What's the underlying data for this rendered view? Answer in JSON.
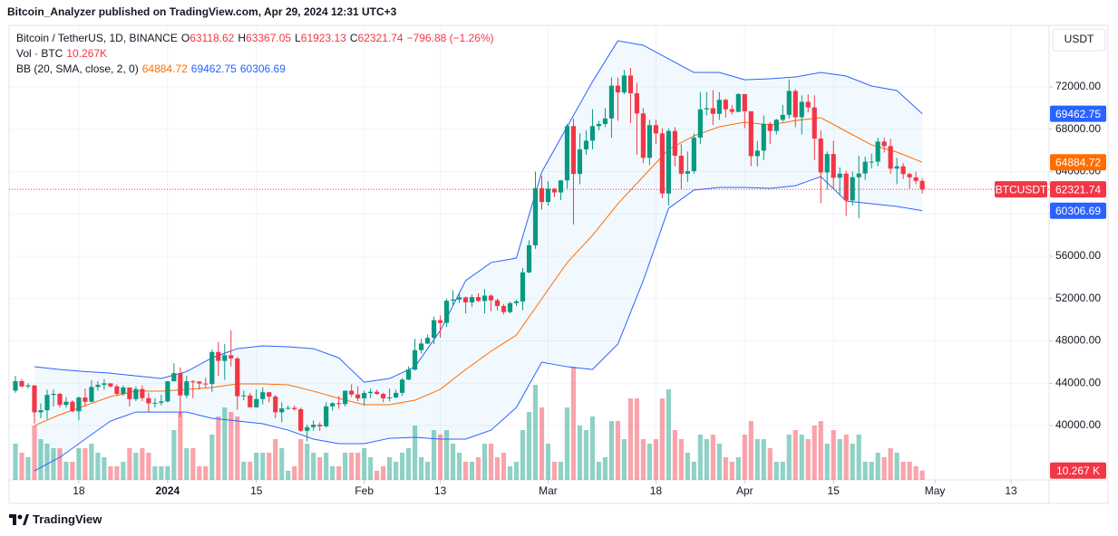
{
  "header": {
    "published": "Bitcoin_Analyzer published on TradingView.com, Apr 29, 2024 12:31 UTC+3"
  },
  "footer": {
    "brand": "TradingView"
  },
  "chart_data": {
    "type": "candlestick",
    "title": "Bitcoin / TetherUS, 1D, BINANCE",
    "ohlc_labels": [
      "O",
      "H",
      "L",
      "C"
    ],
    "change_label": "−796.88 (−1.26%)",
    "currency": "USDT",
    "symbol_tag": "BTCUSDT",
    "up_color": "#089981",
    "down_color": "#f23645",
    "grid": true,
    "last_price_line": true,
    "xlim": [
      "2023-12-07",
      "2024-05-19"
    ],
    "xticks": [
      {
        "value": "2023-12-18",
        "label": "18"
      },
      {
        "value": "2024-01-01",
        "label": "2024"
      },
      {
        "value": "2024-01-15",
        "label": "15"
      },
      {
        "value": "2024-02-01",
        "label": "Feb"
      },
      {
        "value": "2024-02-13",
        "label": "13"
      },
      {
        "value": "2024-03-01",
        "label": "Mar"
      },
      {
        "value": "2024-03-18",
        "label": "18"
      },
      {
        "value": "2024-04-01",
        "label": "Apr"
      },
      {
        "value": "2024-04-15",
        "label": "15"
      },
      {
        "value": "2024-05-01",
        "label": "May"
      },
      {
        "value": "2024-05-13",
        "label": "13"
      }
    ],
    "ylim": [
      34870,
      77820
    ],
    "yticks": [
      {
        "value": 40000,
        "label": "40000.00"
      },
      {
        "value": 44000,
        "label": "44000.00"
      },
      {
        "value": 48000,
        "label": "48000.00"
      },
      {
        "value": 52000,
        "label": "52000.00"
      },
      {
        "value": 56000,
        "label": "56000.00"
      },
      {
        "value": 60000,
        "label": "60000.00"
      },
      {
        "value": 64000,
        "label": "64000.00"
      },
      {
        "value": 68000,
        "label": "68000.00"
      },
      {
        "value": 72000,
        "label": "72000.00"
      }
    ],
    "x": [
      "2023-12-08",
      "2023-12-09",
      "2023-12-10",
      "2023-12-11",
      "2023-12-12",
      "2023-12-13",
      "2023-12-14",
      "2023-12-15",
      "2023-12-16",
      "2023-12-17",
      "2023-12-18",
      "2023-12-19",
      "2023-12-20",
      "2023-12-21",
      "2023-12-22",
      "2023-12-23",
      "2023-12-24",
      "2023-12-25",
      "2023-12-26",
      "2023-12-27",
      "2023-12-28",
      "2023-12-29",
      "2023-12-30",
      "2023-12-31",
      "2024-01-01",
      "2024-01-02",
      "2024-01-03",
      "2024-01-04",
      "2024-01-05",
      "2024-01-06",
      "2024-01-07",
      "2024-01-08",
      "2024-01-09",
      "2024-01-10",
      "2024-01-11",
      "2024-01-12",
      "2024-01-13",
      "2024-01-14",
      "2024-01-15",
      "2024-01-16",
      "2024-01-17",
      "2024-01-18",
      "2024-01-19",
      "2024-01-20",
      "2024-01-21",
      "2024-01-22",
      "2024-01-23",
      "2024-01-24",
      "2024-01-25",
      "2024-01-26",
      "2024-01-27",
      "2024-01-28",
      "2024-01-29",
      "2024-01-30",
      "2024-01-31",
      "2024-02-01",
      "2024-02-02",
      "2024-02-03",
      "2024-02-04",
      "2024-02-05",
      "2024-02-06",
      "2024-02-07",
      "2024-02-08",
      "2024-02-09",
      "2024-02-10",
      "2024-02-11",
      "2024-02-12",
      "2024-02-13",
      "2024-02-14",
      "2024-02-15",
      "2024-02-16",
      "2024-02-17",
      "2024-02-18",
      "2024-02-19",
      "2024-02-20",
      "2024-02-21",
      "2024-02-22",
      "2024-02-23",
      "2024-02-24",
      "2024-02-25",
      "2024-02-26",
      "2024-02-27",
      "2024-02-28",
      "2024-02-29",
      "2024-03-01",
      "2024-03-02",
      "2024-03-03",
      "2024-03-04",
      "2024-03-05",
      "2024-03-06",
      "2024-03-07",
      "2024-03-08",
      "2024-03-09",
      "2024-03-10",
      "2024-03-11",
      "2024-03-12",
      "2024-03-13",
      "2024-03-14",
      "2024-03-15",
      "2024-03-16",
      "2024-03-17",
      "2024-03-18",
      "2024-03-19",
      "2024-03-20",
      "2024-03-21",
      "2024-03-22",
      "2024-03-23",
      "2024-03-24",
      "2024-03-25",
      "2024-03-26",
      "2024-03-27",
      "2024-03-28",
      "2024-03-29",
      "2024-03-30",
      "2024-03-31",
      "2024-04-01",
      "2024-04-02",
      "2024-04-03",
      "2024-04-04",
      "2024-04-05",
      "2024-04-06",
      "2024-04-07",
      "2024-04-08",
      "2024-04-09",
      "2024-04-10",
      "2024-04-11",
      "2024-04-12",
      "2024-04-13",
      "2024-04-14",
      "2024-04-15",
      "2024-04-16",
      "2024-04-17",
      "2024-04-18",
      "2024-04-19",
      "2024-04-20",
      "2024-04-21",
      "2024-04-22",
      "2024-04-23",
      "2024-04-24",
      "2024-04-25",
      "2024-04-26",
      "2024-04-27",
      "2024-04-28",
      "2024-04-29"
    ],
    "open": [
      43300,
      44200,
      43700,
      43800,
      41250,
      41450,
      42900,
      43000,
      41950,
      42250,
      41350,
      42650,
      42250,
      43650,
      43850,
      43990,
      43700,
      43000,
      43600,
      42500,
      43450,
      42600,
      42100,
      42150,
      42280,
      44180,
      44950,
      42850,
      44180,
      44160,
      43970,
      43930,
      46950,
      46110,
      46650,
      46340,
      42780,
      42850,
      41730,
      42510,
      43150,
      42740,
      41260,
      41620,
      41670,
      41550,
      39510,
      39850,
      40080,
      39930,
      41820,
      42120,
      42030,
      43300,
      42940,
      42580,
      43080,
      43190,
      42990,
      42580,
      42660,
      43090,
      44340,
      45290,
      47130,
      47750,
      48290,
      49960,
      49700,
      51800,
      51910,
      52120,
      51640,
      52140,
      51780,
      52280,
      51840,
      51300,
      50730,
      51570,
      51730,
      54480,
      57040,
      62430,
      61130,
      62390,
      62030,
      63170,
      68300,
      63780,
      66100,
      66920,
      68300,
      68500,
      69020,
      72120,
      71480,
      73080,
      71400,
      69500,
      65300,
      68390,
      67610,
      61930,
      67840,
      65500,
      63800,
      64040,
      67210,
      69880,
      69990,
      69460,
      70780,
      69890,
      69650,
      71330,
      69700,
      65460,
      65980,
      68510,
      67840,
      68900,
      69360,
      71620,
      69140,
      70590,
      70060,
      67120,
      63920,
      65660,
      63420,
      63810,
      61280,
      63470,
      63820,
      64940,
      64940,
      66840,
      66410,
      64280,
      64500,
      63770,
      63460,
      63118.62
    ],
    "high": [
      44700,
      44400,
      44000,
      43800,
      42100,
      43400,
      43400,
      43100,
      42700,
      42400,
      42750,
      43500,
      44300,
      44200,
      44400,
      44000,
      43900,
      43800,
      43600,
      43700,
      43800,
      43100,
      42600,
      42900,
      44200,
      45900,
      45500,
      44700,
      44300,
      44200,
      44500,
      47200,
      47900,
      47700,
      49000,
      46500,
      43300,
      43100,
      43400,
      43600,
      43200,
      42900,
      42200,
      41900,
      41900,
      41700,
      40100,
      40500,
      40300,
      42200,
      42200,
      42800,
      43300,
      43900,
      43700,
      43300,
      43500,
      43400,
      43100,
      43500,
      43400,
      44500,
      45600,
      48200,
      48200,
      48600,
      50300,
      50400,
      52000,
      52800,
      52600,
      52200,
      52400,
      52500,
      52900,
      52400,
      52000,
      51500,
      51700,
      51900,
      54900,
      57500,
      64000,
      63600,
      63100,
      62400,
      63200,
      68500,
      69000,
      67600,
      67900,
      69900,
      68800,
      70000,
      72900,
      72900,
      73600,
      73800,
      72400,
      70000,
      68900,
      68900,
      68100,
      68100,
      68200,
      66600,
      65900,
      67600,
      71500,
      71500,
      71700,
      71500,
      70900,
      70300,
      71400,
      71300,
      69700,
      66900,
      69300,
      68700,
      69000,
      70300,
      72700,
      71800,
      71200,
      71300,
      71200,
      67900,
      65900,
      66900,
      64400,
      64100,
      64000,
      65500,
      65400,
      65700,
      67200,
      67200,
      67100,
      65300,
      64800,
      63900,
      64000,
      63367.05
    ],
    "low": [
      43100,
      43600,
      43500,
      40200,
      40700,
      40600,
      41800,
      41700,
      41700,
      41250,
      40500,
      41800,
      42200,
      43300,
      43400,
      43600,
      42800,
      42800,
      41800,
      42300,
      42300,
      41300,
      41700,
      41900,
      42200,
      44200,
      40800,
      42600,
      42600,
      43400,
      43600,
      43200,
      44700,
      44300,
      45600,
      41500,
      42400,
      41700,
      41700,
      42000,
      42200,
      40700,
      40300,
      41500,
      41400,
      39400,
      38500,
      39500,
      39500,
      39800,
      41400,
      41600,
      41800,
      42700,
      42300,
      41900,
      42600,
      42900,
      42200,
      42300,
      42600,
      42800,
      44300,
      45200,
      46800,
      47700,
      47700,
      48300,
      49300,
      51300,
      51600,
      50600,
      51200,
      51700,
      50600,
      50800,
      50900,
      50500,
      50600,
      51300,
      50900,
      54400,
      56700,
      60400,
      60800,
      61600,
      61300,
      62400,
      59000,
      62800,
      65600,
      66100,
      67900,
      68200,
      67200,
      68800,
      71300,
      68600,
      65600,
      64800,
      64600,
      66600,
      61500,
      60800,
      64500,
      62300,
      63000,
      63800,
      66600,
      69300,
      68400,
      68900,
      69100,
      69400,
      69600,
      68100,
      64500,
      64500,
      65100,
      66600,
      67500,
      68700,
      69000,
      68200,
      67500,
      69600,
      65100,
      61000,
      62300,
      62300,
      61800,
      59800,
      60800,
      59600,
      63200,
      64300,
      64500,
      65800,
      63800,
      62800,
      63300,
      62400,
      62800,
      61923.13
    ],
    "close": [
      44200,
      43700,
      43800,
      41250,
      41450,
      42900,
      43000,
      41950,
      42250,
      41350,
      42650,
      42250,
      43650,
      43850,
      43990,
      43700,
      43000,
      43600,
      42500,
      43450,
      42600,
      42100,
      42150,
      42280,
      44180,
      44950,
      42850,
      44180,
      44160,
      43970,
      43930,
      46950,
      46110,
      46650,
      46340,
      42780,
      42850,
      41730,
      42510,
      43150,
      42740,
      41260,
      41620,
      41670,
      41550,
      39510,
      39850,
      40080,
      39930,
      41820,
      42120,
      42030,
      43300,
      42940,
      42580,
      43080,
      43190,
      42990,
      42580,
      42660,
      43090,
      44340,
      45290,
      47130,
      47750,
      48290,
      49960,
      49700,
      51800,
      51910,
      52120,
      51640,
      52140,
      51780,
      52280,
      51840,
      51300,
      50730,
      51570,
      51730,
      54480,
      57040,
      62430,
      61130,
      62390,
      62030,
      63170,
      68300,
      63780,
      66100,
      66920,
      68300,
      68500,
      69020,
      72120,
      71480,
      73080,
      71400,
      69500,
      65300,
      68390,
      67610,
      61930,
      67840,
      65500,
      63800,
      64040,
      67210,
      69880,
      69990,
      69460,
      70780,
      69890,
      69650,
      71330,
      69700,
      65460,
      65980,
      68510,
      67840,
      68900,
      69360,
      71620,
      69140,
      70590,
      70060,
      67120,
      63920,
      65660,
      63420,
      63810,
      61280,
      63470,
      63820,
      64940,
      64940,
      66840,
      66410,
      64280,
      64500,
      63770,
      63460,
      63118.62,
      62321.74
    ],
    "volume": {
      "title": "Vol · BTC",
      "legend_label": "10.267K",
      "axis_label": "10.267 K",
      "ylim": [
        0,
        130
      ],
      "up_color": "rgba(8,153,129,0.45)",
      "down_color": "rgba(242,54,69,0.45)",
      "values": [
        40,
        30,
        25,
        60,
        45,
        40,
        35,
        35,
        20,
        20,
        35,
        35,
        40,
        30,
        25,
        15,
        15,
        20,
        35,
        30,
        35,
        30,
        15,
        15,
        15,
        55,
        75,
        35,
        35,
        15,
        15,
        50,
        70,
        80,
        75,
        70,
        20,
        20,
        30,
        30,
        30,
        45,
        35,
        10,
        15,
        45,
        40,
        30,
        25,
        30,
        15,
        15,
        30,
        30,
        30,
        35,
        25,
        10,
        15,
        25,
        20,
        30,
        35,
        60,
        25,
        20,
        55,
        50,
        55,
        40,
        30,
        20,
        20,
        25,
        40,
        40,
        25,
        30,
        15,
        20,
        55,
        75,
        105,
        80,
        40,
        20,
        20,
        80,
        125,
        60,
        55,
        70,
        20,
        25,
        65,
        65,
        45,
        90,
        90,
        45,
        40,
        45,
        90,
        100,
        55,
        45,
        30,
        20,
        50,
        45,
        50,
        40,
        25,
        20,
        25,
        50,
        65,
        45,
        45,
        35,
        20,
        20,
        50,
        55,
        50,
        45,
        60,
        65,
        40,
        55,
        45,
        50,
        40,
        50,
        20,
        20,
        30,
        25,
        35,
        30,
        20,
        20,
        15,
        10.267
      ]
    },
    "bands": {
      "title": "BB (20, SMA, close, 2, 0)",
      "upper_color": "#2962ff",
      "middle_color": "#ff6d00",
      "lower_color": "#2962ff",
      "fill": "rgba(33,150,243,0.06)",
      "x": [
        "2023-12-11",
        "2023-12-15",
        "2023-12-19",
        "2023-12-23",
        "2023-12-27",
        "2023-12-31",
        "2024-01-04",
        "2024-01-08",
        "2024-01-12",
        "2024-01-16",
        "2024-01-20",
        "2024-01-24",
        "2024-01-28",
        "2024-02-01",
        "2024-02-05",
        "2024-02-09",
        "2024-02-13",
        "2024-02-17",
        "2024-02-21",
        "2024-02-25",
        "2024-02-29",
        "2024-03-04",
        "2024-03-08",
        "2024-03-12",
        "2024-03-16",
        "2024-03-20",
        "2024-03-24",
        "2024-03-28",
        "2024-04-01",
        "2024-04-05",
        "2024-04-09",
        "2024-04-13",
        "2024-04-17",
        "2024-04-21",
        "2024-04-25",
        "2024-04-29"
      ],
      "upper": [
        45560,
        45300,
        45100,
        44950,
        44700,
        44450,
        45100,
        46400,
        47270,
        47530,
        47450,
        47270,
        46400,
        44100,
        44450,
        45560,
        48980,
        53700,
        55400,
        55830,
        63960,
        68240,
        72500,
        76360,
        75940,
        74650,
        73370,
        73370,
        72680,
        72770,
        72940,
        73370,
        73030,
        72090,
        71660,
        69462.75
      ],
      "middle": [
        40000,
        41030,
        41880,
        42740,
        43250,
        43250,
        43420,
        43600,
        43940,
        43940,
        43850,
        43250,
        42570,
        41970,
        41970,
        42400,
        43420,
        45300,
        47020,
        48560,
        51980,
        55400,
        57970,
        60960,
        63530,
        66100,
        67380,
        68240,
        68660,
        68410,
        68830,
        69090,
        67810,
        66520,
        65840,
        64884.72
      ],
      "lower": [
        35720,
        37000,
        38720,
        40430,
        41280,
        41280,
        41280,
        40690,
        40430,
        40170,
        39570,
        38720,
        38290,
        38290,
        38800,
        38890,
        38720,
        38720,
        39570,
        41710,
        45990,
        45560,
        45300,
        47700,
        53690,
        60530,
        62250,
        62500,
        62500,
        62420,
        62670,
        63530,
        61220,
        60970,
        60710,
        60306.69
      ]
    }
  }
}
